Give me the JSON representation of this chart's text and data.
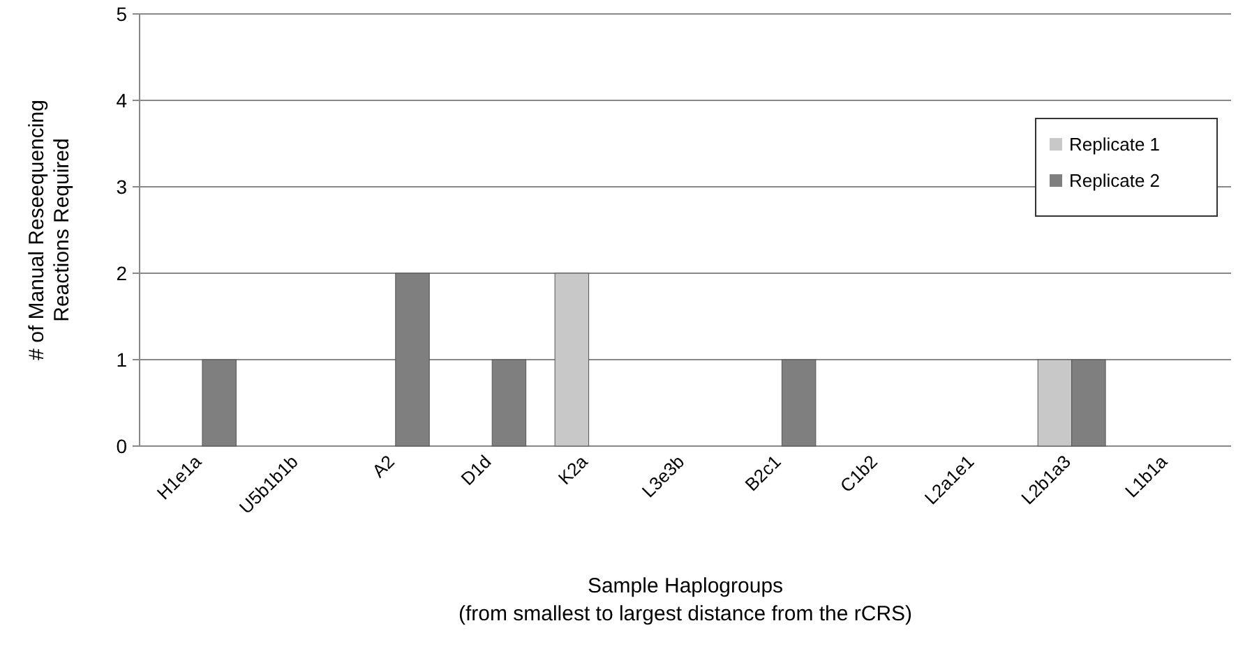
{
  "chart_data": {
    "type": "bar",
    "xlabel": "Sample Haplogroups\n(from smallest to largest distance from the rCRS)",
    "ylabel": "# of Manual Reseequencing\nReactions Required",
    "categories": [
      "H1e1a",
      "U5b1b1b",
      "A2",
      "D1d",
      "K2a",
      "L3e3b",
      "B2c1",
      "C1b2",
      "L2a1e1",
      "L2b1a3",
      "L1b1a"
    ],
    "series": [
      {
        "name": "Replicate 1",
        "color": "#c8c8c8",
        "values": [
          0,
          0,
          0,
          0,
          2,
          0,
          0,
          0,
          null,
          1,
          0
        ]
      },
      {
        "name": "Replicate 2",
        "color": "#7f7f7f",
        "values": [
          1,
          0,
          2,
          1,
          0,
          0,
          1,
          0,
          0,
          1,
          0
        ]
      }
    ],
    "ylim": [
      0,
      5
    ],
    "yticks": [
      0,
      1,
      2,
      3,
      4,
      5
    ],
    "grid": "y",
    "legend": "right"
  }
}
